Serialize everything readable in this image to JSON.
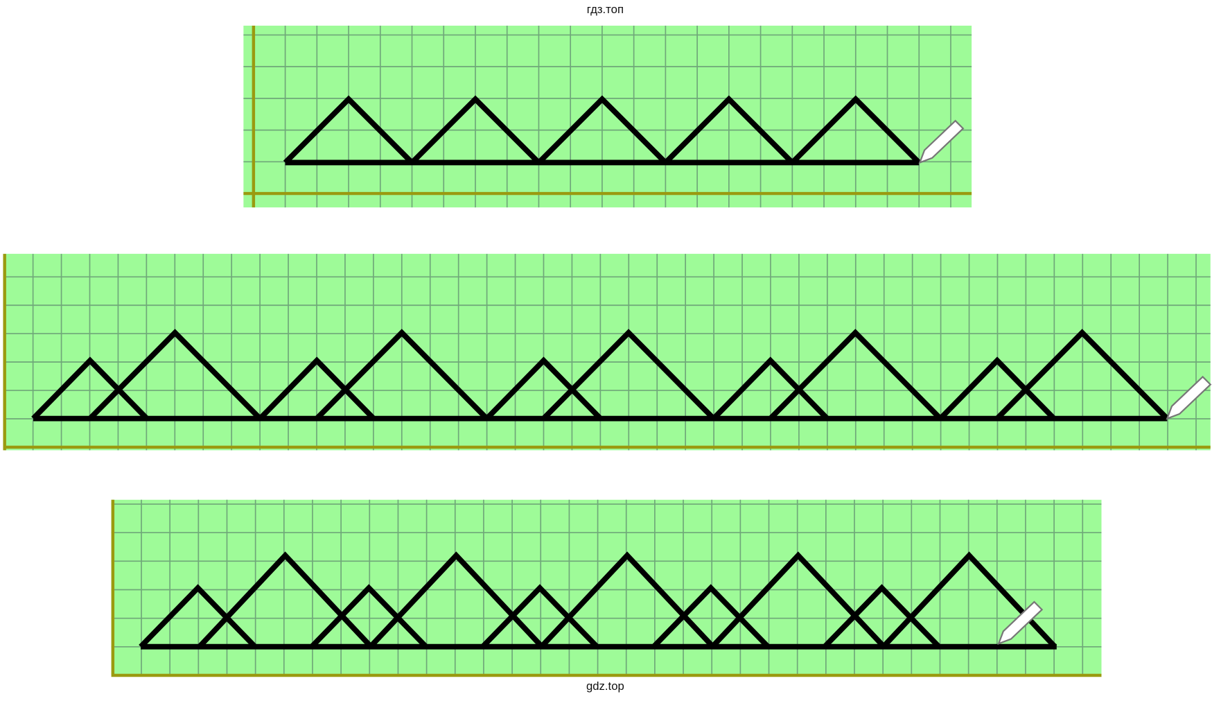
{
  "header": {
    "watermark": "гдз.топ"
  },
  "footer": {
    "watermark": "gdz.top"
  }
}
